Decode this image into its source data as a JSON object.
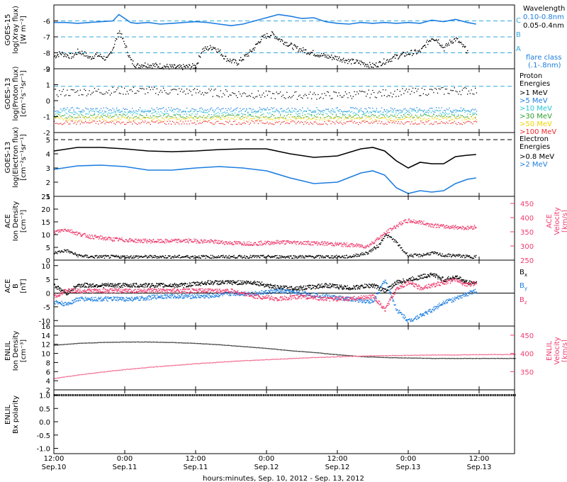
{
  "colors": {
    "black": "#000000",
    "blue": "#1e7ee0",
    "cyan": "#23c7d6",
    "green": "#2ca02c",
    "yellow": "#f2d400",
    "orange": "#ff8c00",
    "red": "#ee2a2a",
    "pink": "#ee3c6e",
    "guide": "#33a9dc"
  },
  "xaxis": {
    "tick_times": [
      "12:00",
      "0:00",
      "12:00",
      "0:00",
      "12:00",
      "0:00",
      "12:00"
    ],
    "tick_dates": [
      "Sep.10",
      "Sep.11",
      "Sep.11",
      "Sep.12",
      "Sep.12",
      "Sep.13",
      "Sep.13"
    ],
    "title": "hours:minutes, Sep. 10, 2012 - Sep. 13, 2012"
  },
  "chart_data": [
    {
      "id": "goes15-xray",
      "type": "scatter",
      "ylabel": [
        "GOES-15",
        "log(Xray flux)",
        "[W m⁻²]"
      ],
      "ylim": [
        -9,
        -5
      ],
      "yticks": [
        "-6",
        "-7",
        "-8",
        "-9"
      ],
      "guide_lines": [
        -6,
        -7,
        -8
      ],
      "class_labels": [
        "C",
        "B",
        "A"
      ],
      "legend": {
        "title": "Wavelength",
        "entries": [
          {
            "label": "0.10-0.8nm",
            "color": "blue"
          },
          {
            "label": "0.05-0.4nm",
            "color": "black"
          }
        ],
        "note": [
          "flare class",
          "(.1-.8nm)"
        ]
      },
      "series": [
        {
          "name": "0.10-0.8nm",
          "color": "blue",
          "style": "line",
          "x": [
            0,
            2,
            4,
            6,
            8,
            10,
            11,
            12,
            13,
            14,
            16,
            18,
            20,
            22,
            24,
            26,
            28,
            30,
            32,
            34,
            36,
            38,
            40,
            42,
            44,
            46,
            48,
            50,
            52,
            54,
            56,
            58,
            60,
            62,
            64,
            66,
            68,
            70,
            71.5
          ],
          "y": [
            -6.1,
            -6.1,
            -6.15,
            -6.1,
            -6.05,
            -6.0,
            -5.6,
            -5.85,
            -6.1,
            -6.15,
            -6.1,
            -6.2,
            -6.15,
            -6.1,
            -6.05,
            -6.1,
            -6.2,
            -6.3,
            -6.2,
            -6.0,
            -5.8,
            -5.6,
            -5.7,
            -5.85,
            -5.8,
            -6.05,
            -6.15,
            -6.2,
            -6.1,
            -6.15,
            -6.1,
            -6.15,
            -6.1,
            -6.15,
            -5.95,
            -6.05,
            -5.9,
            -6.1,
            -6.2
          ]
        },
        {
          "name": "0.05-0.4nm",
          "color": "black",
          "style": "scatter",
          "x": [
            0,
            1,
            2,
            3,
            4,
            5,
            6,
            7,
            8,
            9,
            10,
            11,
            12,
            13,
            14,
            15,
            18,
            21,
            24,
            25,
            26,
            27,
            28,
            29,
            30,
            31,
            32,
            33,
            34,
            35,
            36,
            37,
            38,
            39,
            40,
            41,
            42,
            44,
            46,
            48,
            50,
            52,
            54,
            56,
            58,
            60,
            62,
            63,
            64,
            65,
            66,
            67,
            68,
            69,
            70
          ],
          "y": [
            -8.2,
            -8.0,
            -8.1,
            -8.2,
            -7.9,
            -8.0,
            -8.3,
            -8.1,
            -8.2,
            -8.4,
            -7.6,
            -6.6,
            -7.5,
            -8.5,
            -8.8,
            -8.7,
            -8.8,
            -8.9,
            -8.8,
            -7.8,
            -7.7,
            -7.6,
            -7.9,
            -8.3,
            -8.5,
            -8.6,
            -8.3,
            -8.0,
            -7.6,
            -7.1,
            -6.9,
            -6.8,
            -7.1,
            -7.3,
            -7.5,
            -7.7,
            -7.8,
            -8.0,
            -8.2,
            -8.3,
            -8.5,
            -8.6,
            -8.8,
            -8.5,
            -8.2,
            -8.0,
            -7.9,
            -7.4,
            -7.0,
            -7.2,
            -7.7,
            -7.3,
            -7.1,
            -7.5,
            -7.9
          ]
        }
      ]
    },
    {
      "id": "goes13-proton",
      "type": "scatter",
      "ylabel": [
        "GOES-13",
        "log(Proton flux)",
        "[cm⁻²s⁻¹sr⁻¹]"
      ],
      "ylim": [
        -2,
        2
      ],
      "yticks": [
        "2",
        "1",
        "0",
        "-1",
        "-2"
      ],
      "guide_lines": [
        0.9
      ],
      "legend": {
        "title": "Proton Energies",
        "entries": [
          {
            "label": ">1 MeV",
            "color": "black"
          },
          {
            "label": ">5 MeV",
            "color": "blue"
          },
          {
            "label": ">10 MeV",
            "color": "cyan"
          },
          {
            "label": ">30 MeV",
            "color": "green"
          },
          {
            "label": ">50 MeV",
            "color": "yellow"
          },
          {
            "label": ">100 MeV",
            "color": "red"
          }
        ]
      },
      "series": [
        {
          "name": ">1 MeV",
          "color": "black",
          "level": 0.5,
          "spread": 0.25
        },
        {
          "name": ">5 MeV",
          "color": "blue",
          "level": -0.55,
          "spread": 0.15
        },
        {
          "name": ">10 MeV",
          "color": "cyan",
          "level": -0.7,
          "spread": 0.15
        },
        {
          "name": ">30 MeV",
          "color": "green",
          "level": -0.95,
          "spread": 0.12
        },
        {
          "name": ">50 MeV",
          "color": "yellow",
          "level": -1.1,
          "spread": 0.12
        },
        {
          "name": ">100 MeV",
          "color": "red",
          "level": -1.35,
          "spread": 0.12
        }
      ]
    },
    {
      "id": "goes13-electron",
      "type": "line",
      "ylabel": [
        "GOES-13",
        "log(Electron flux)",
        "[cm⁻²s⁻¹sr⁻¹]"
      ],
      "ylim": [
        1,
        5.5
      ],
      "yticks": [
        "5",
        "4",
        "3",
        "2",
        "1"
      ],
      "guide_lines": [
        5.0
      ],
      "legend": {
        "title": "Electron Energies",
        "entries": [
          {
            "label": ">0.8 MeV",
            "color": "black"
          },
          {
            "label": ">2 MeV",
            "color": "blue"
          }
        ]
      },
      "series": [
        {
          "name": ">0.8 MeV",
          "color": "black",
          "x": [
            0,
            4,
            8,
            12,
            16,
            20,
            24,
            28,
            32,
            36,
            40,
            44,
            48,
            52,
            54,
            56,
            58,
            60,
            62,
            64,
            66,
            68,
            70,
            71.5
          ],
          "y": [
            4.2,
            4.45,
            4.45,
            4.35,
            4.2,
            4.15,
            4.2,
            4.3,
            4.35,
            4.35,
            4.0,
            3.75,
            3.85,
            4.35,
            4.45,
            4.2,
            3.5,
            3.0,
            3.4,
            3.3,
            3.3,
            3.8,
            3.9,
            3.95
          ]
        },
        {
          "name": ">2 MeV",
          "color": "blue",
          "x": [
            0,
            4,
            8,
            12,
            16,
            20,
            24,
            28,
            32,
            36,
            40,
            44,
            48,
            52,
            54,
            56,
            58,
            60,
            62,
            64,
            66,
            68,
            70,
            71.5
          ],
          "y": [
            2.9,
            3.15,
            3.2,
            3.1,
            2.85,
            2.85,
            3.0,
            3.1,
            3.0,
            2.8,
            2.3,
            1.9,
            2.0,
            2.65,
            2.8,
            2.5,
            1.6,
            1.2,
            1.4,
            1.3,
            1.4,
            1.9,
            2.2,
            2.3
          ]
        }
      ]
    },
    {
      "id": "ace-plasma",
      "type": "scatter",
      "ylabel_left": [
        "ACE",
        "Ion Density",
        "[cm⁻³]"
      ],
      "ylabel_right": [
        "ACE",
        "Velocity",
        "[km/s]"
      ],
      "ylim": [
        0,
        25
      ],
      "ylim_right": [
        250,
        475
      ],
      "yticks": [
        "25",
        "20",
        "15",
        "10",
        "5",
        "0"
      ],
      "yticks_right": [
        "450",
        "400",
        "350",
        "300",
        "250"
      ],
      "series": [
        {
          "name": "density",
          "color": "black",
          "axis": "left",
          "x": [
            0,
            2,
            4,
            6,
            8,
            10,
            14,
            18,
            22,
            26,
            30,
            34,
            38,
            42,
            46,
            50,
            53,
            55,
            56,
            57,
            58,
            59,
            60,
            62,
            64,
            66,
            68,
            70,
            71.5
          ],
          "y": [
            3,
            4,
            2,
            1.5,
            1.5,
            1.5,
            1.5,
            1.5,
            1.5,
            1.5,
            1.5,
            1.5,
            1.5,
            1.5,
            1.5,
            1.5,
            3,
            6,
            10,
            9,
            7,
            4,
            2,
            2,
            3,
            2,
            2,
            1.5,
            1.5
          ]
        },
        {
          "name": "velocity",
          "color": "pink",
          "axis": "right",
          "x": [
            0,
            2,
            4,
            6,
            8,
            10,
            14,
            18,
            22,
            26,
            30,
            34,
            38,
            42,
            46,
            50,
            53,
            55,
            57,
            59,
            60,
            62,
            64,
            66,
            68,
            70,
            71.5
          ],
          "y": [
            350,
            360,
            345,
            335,
            330,
            325,
            320,
            318,
            320,
            318,
            312,
            310,
            315,
            313,
            310,
            305,
            300,
            330,
            360,
            385,
            390,
            385,
            375,
            370,
            368,
            365,
            370
          ]
        }
      ]
    },
    {
      "id": "ace-mag",
      "type": "line",
      "ylabel": [
        "ACE",
        "B",
        "[nT]"
      ],
      "ylim": [
        -12,
        12
      ],
      "yticks": [
        "10",
        "5",
        "0",
        "-5",
        "-10"
      ],
      "legend": {
        "entries": [
          {
            "label": "Bx",
            "color": "black"
          },
          {
            "label": "By",
            "color": "blue"
          },
          {
            "label": "Bz",
            "color": "pink"
          }
        ]
      },
      "series": [
        {
          "name": "Bx",
          "color": "black",
          "x": [
            0,
            2,
            4,
            6,
            10,
            14,
            18,
            22,
            26,
            30,
            34,
            38,
            42,
            46,
            50,
            54,
            56,
            58,
            60,
            62,
            64,
            66,
            68,
            70,
            71.5
          ],
          "y": [
            3,
            0,
            3,
            3,
            3,
            3,
            3,
            3,
            4,
            4,
            4,
            2,
            2,
            3,
            2,
            3,
            1,
            4,
            5,
            6,
            7,
            5,
            6,
            4,
            4
          ]
        },
        {
          "name": "By",
          "color": "blue",
          "x": [
            0,
            2,
            4,
            6,
            10,
            14,
            18,
            22,
            26,
            30,
            34,
            38,
            42,
            46,
            50,
            54,
            56,
            58,
            60,
            62,
            64,
            66,
            68,
            70,
            71.5
          ],
          "y": [
            -3,
            -4,
            -2,
            -2,
            -2,
            -2,
            -1,
            -1,
            -1,
            0,
            0,
            1,
            0,
            -1,
            -2,
            -3,
            5,
            -6,
            -10,
            -8,
            -6,
            -3,
            -2,
            0,
            1
          ]
        },
        {
          "name": "Bz",
          "color": "pink",
          "x": [
            0,
            2,
            4,
            6,
            10,
            14,
            18,
            22,
            26,
            30,
            34,
            38,
            42,
            46,
            50,
            54,
            56,
            58,
            60,
            62,
            64,
            66,
            68,
            70,
            71.5
          ],
          "y": [
            -1,
            1,
            1,
            1,
            1,
            1,
            1,
            1,
            1,
            1,
            -1,
            -2,
            -1,
            -2,
            -2,
            -1,
            -6,
            2,
            4,
            2,
            3,
            4,
            5,
            3,
            4
          ]
        }
      ]
    },
    {
      "id": "enlil-plasma",
      "type": "line",
      "ylabel_left": [
        "ENLIL",
        "Ion Density",
        "[cm⁻³]"
      ],
      "ylabel_right": [
        "ENLIL",
        "Velocity",
        "[km/s]"
      ],
      "ylim": [
        2,
        16
      ],
      "ylim_right": [
        300,
        475
      ],
      "yticks": [
        "16",
        "14",
        "12",
        "10",
        "8",
        "6",
        "4",
        "2"
      ],
      "yticks_right": [
        "450",
        "400",
        "350"
      ],
      "series": [
        {
          "name": "density",
          "color": "black",
          "axis": "left",
          "x": [
            0,
            4,
            8,
            12,
            16,
            20,
            24,
            28,
            32,
            36,
            40,
            44,
            48,
            52,
            56,
            60,
            64,
            68,
            72,
            76,
            78
          ],
          "y": [
            11.9,
            12.3,
            12.5,
            12.6,
            12.6,
            12.5,
            12.3,
            12.0,
            11.6,
            11.2,
            10.7,
            10.3,
            9.8,
            9.4,
            9.2,
            9.1,
            9.0,
            9.0,
            9.0,
            9.0,
            9.0
          ]
        },
        {
          "name": "velocity",
          "color": "pink",
          "axis": "right",
          "x": [
            0,
            4,
            8,
            12,
            16,
            20,
            24,
            28,
            32,
            36,
            40,
            44,
            48,
            52,
            56,
            60,
            64,
            68,
            72,
            76,
            78
          ],
          "y": [
            332,
            342,
            350,
            357,
            363,
            368,
            373,
            377,
            381,
            384,
            387,
            390,
            392,
            394,
            395,
            396,
            397,
            397,
            398,
            398,
            398
          ]
        }
      ]
    },
    {
      "id": "enlil-polarity",
      "type": "scatter",
      "ylabel": [
        "ENLIL",
        "Bx polarity"
      ],
      "ylim": [
        -1.2,
        1.2
      ],
      "yticks": [
        "1.0",
        "0.5",
        "0.0",
        "-0.5",
        "-1.0"
      ],
      "series": [
        {
          "name": "polarity",
          "color": "black",
          "value": 1.0
        }
      ]
    }
  ]
}
